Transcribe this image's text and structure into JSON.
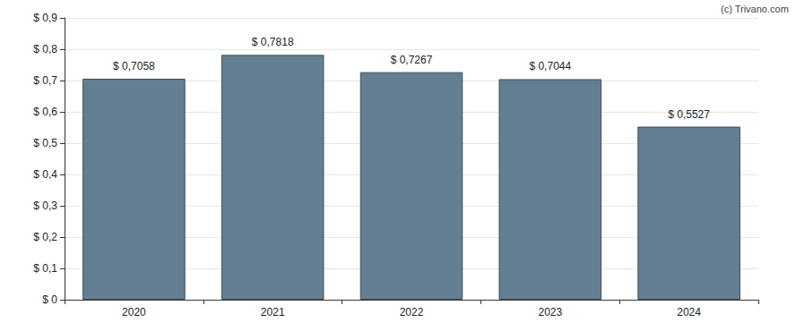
{
  "chart_data": {
    "type": "bar",
    "annotation": "(c) Trivano.com",
    "categories": [
      "2020",
      "2021",
      "2022",
      "2023",
      "2024"
    ],
    "values": [
      0.7058,
      0.7818,
      0.7267,
      0.7044,
      0.5527
    ],
    "value_labels": [
      "$ 0,7058",
      "$ 0,7818",
      "$ 0,7267",
      "$ 0,7044",
      "$ 0,5527"
    ],
    "data_labels": true,
    "color": "#647f91",
    "ylim": [
      0,
      0.9
    ],
    "yticks": [
      {
        "value": 0,
        "label": "$ 0"
      },
      {
        "value": 0.1,
        "label": "$ 0,1"
      },
      {
        "value": 0.2,
        "label": "$ 0,2"
      },
      {
        "value": 0.3,
        "label": "$ 0,3"
      },
      {
        "value": 0.4,
        "label": "$ 0,4"
      },
      {
        "value": 0.5,
        "label": "$ 0,5"
      },
      {
        "value": 0.6,
        "label": "$ 0,6"
      },
      {
        "value": 0.7,
        "label": "$ 0,7"
      },
      {
        "value": 0.8,
        "label": "$ 0,8"
      },
      {
        "value": 0.9,
        "label": "$ 0,9"
      }
    ],
    "grid": true
  }
}
